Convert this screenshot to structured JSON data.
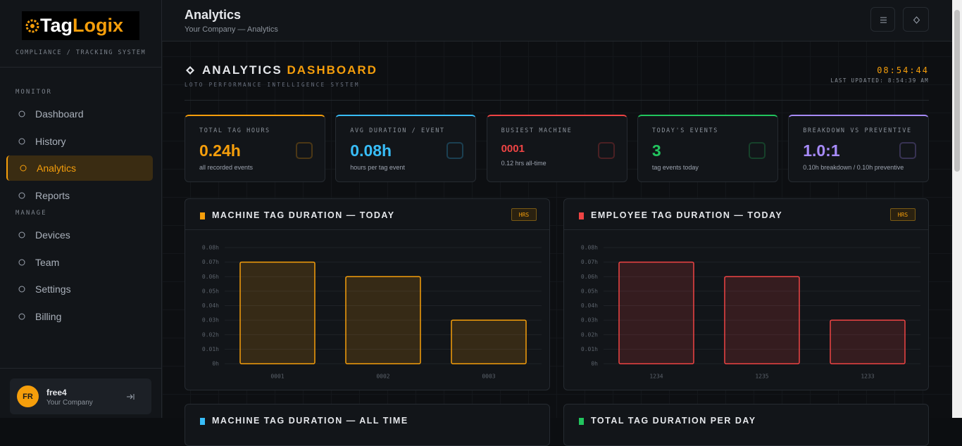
{
  "sidebar": {
    "logo_prefix": "Tag",
    "logo_suffix": "Logix",
    "tagline": "COMPLIANCE / TRACKING SYSTEM",
    "sections": [
      {
        "title": "MONITOR",
        "items": [
          "Dashboard",
          "History",
          "Analytics",
          "Reports"
        ]
      },
      {
        "title": "MANAGE",
        "items": [
          "Devices",
          "Team",
          "Settings",
          "Billing"
        ]
      }
    ],
    "active": "Analytics",
    "user": {
      "initials": "FR",
      "name": "free4",
      "company": "Your Company"
    }
  },
  "header": {
    "title": "Analytics",
    "breadcrumb": "Your Company — Analytics"
  },
  "dashboard": {
    "title_a": "ANALYTICS",
    "title_b": "DASHBOARD",
    "subtitle": "LOTO PERFORMANCE INTELLIGENCE SYSTEM",
    "clock": "08:54:44",
    "updated": "LAST UPDATED: 8:54:39 AM"
  },
  "kpis": [
    {
      "label": "TOTAL TAG HOURS",
      "value": "0.24h",
      "note": "all recorded events",
      "color": "#f59e0b"
    },
    {
      "label": "AVG DURATION / EVENT",
      "value": "0.08h",
      "note": "hours per tag event",
      "color": "#38bdf8"
    },
    {
      "label": "BUSIEST MACHINE",
      "value": "0001",
      "note": "0.12 hrs all-time",
      "color": "#ef4444"
    },
    {
      "label": "TODAY'S EVENTS",
      "value": "3",
      "note": "tag events today",
      "color": "#22c55e"
    },
    {
      "label": "BREAKDOWN VS PREVENTIVE",
      "value": "1.0:1",
      "note": "0.10h breakdown / 0.10h preventive",
      "color": "#a78bfa"
    }
  ],
  "chart_data": [
    {
      "type": "bar",
      "title": "MACHINE TAG DURATION — TODAY",
      "badge": "HRS",
      "color": "#f59e0b",
      "categories": [
        "0001",
        "0002",
        "0003"
      ],
      "values": [
        0.07,
        0.06,
        0.03
      ],
      "ylim": [
        0,
        0.08
      ],
      "yticks": [
        {
          "value": 0,
          "label": "0h"
        },
        {
          "value": 0.01,
          "label": "0.01h"
        },
        {
          "value": 0.02,
          "label": "0.02h"
        },
        {
          "value": 0.03,
          "label": "0.03h"
        },
        {
          "value": 0.04,
          "label": "0.04h"
        },
        {
          "value": 0.05,
          "label": "0.05h"
        },
        {
          "value": 0.06,
          "label": "0.06h"
        },
        {
          "value": 0.07,
          "label": "0.07h"
        },
        {
          "value": 0.08,
          "label": "0.08h"
        }
      ],
      "grid": true
    },
    {
      "type": "bar",
      "title": "EMPLOYEE TAG DURATION — TODAY",
      "badge": "HRS",
      "color": "#ef4444",
      "categories": [
        "1234",
        "1235",
        "1233"
      ],
      "values": [
        0.07,
        0.06,
        0.03
      ],
      "ylim": [
        0,
        0.08
      ],
      "yticks": [
        {
          "value": 0,
          "label": "0h"
        },
        {
          "value": 0.01,
          "label": "0.01h"
        },
        {
          "value": 0.02,
          "label": "0.02h"
        },
        {
          "value": 0.03,
          "label": "0.03h"
        },
        {
          "value": 0.04,
          "label": "0.04h"
        },
        {
          "value": 0.05,
          "label": "0.05h"
        },
        {
          "value": 0.06,
          "label": "0.06h"
        },
        {
          "value": 0.07,
          "label": "0.07h"
        },
        {
          "value": 0.08,
          "label": "0.08h"
        }
      ],
      "grid": true
    }
  ],
  "more_panels": [
    {
      "title": "MACHINE TAG DURATION — ALL TIME",
      "color": "#38bdf8"
    },
    {
      "title": "TOTAL TAG DURATION PER DAY",
      "color": "#22c55e"
    }
  ]
}
